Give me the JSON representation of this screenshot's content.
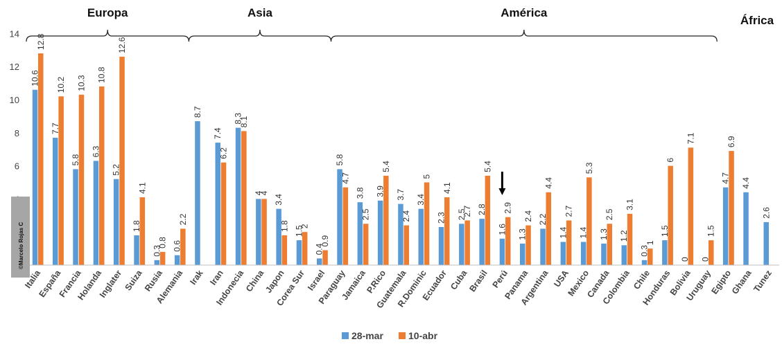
{
  "chart_data": {
    "type": "bar",
    "title": "",
    "xlabel": "",
    "ylabel": "",
    "ylim": [
      0,
      14
    ],
    "yticks": [
      4,
      6,
      8,
      10,
      12,
      14
    ],
    "grid": false,
    "legend_position": "bottom",
    "categories": [
      "Italia",
      "España",
      "Francia",
      "Holanda",
      "Inglater",
      "Suiza",
      "Rusia",
      "Alemania",
      "Irak",
      "Iran",
      "Indonecia",
      "China",
      "Japon",
      "Corea Sur",
      "Israel",
      "Paraguay",
      "Jamaica",
      "P.Rico",
      "Guatemala",
      "R.Dominic",
      "Ecuador",
      "Cuba",
      "Brasil",
      "Perú",
      "Panama",
      "Argentina",
      "USA",
      "Mexico",
      "Canada",
      "Colombia",
      "Chile",
      "Honduras",
      "Bolivia",
      "Uruguay",
      "Egipto",
      "Ghana",
      "Tunez"
    ],
    "series": [
      {
        "name": "28-mar",
        "color": "#5b9bd5",
        "values": [
          10.6,
          7.7,
          5.8,
          6.3,
          5.2,
          1.8,
          0.3,
          0.6,
          8.7,
          7.4,
          8.3,
          4,
          3.4,
          1.5,
          0.4,
          5.8,
          3.8,
          3.9,
          3.7,
          3.4,
          2.3,
          2.5,
          2.8,
          1.6,
          1.3,
          2.2,
          1.4,
          1.4,
          1.3,
          1.2,
          0.3,
          1.5,
          0,
          0,
          4.7,
          4.4,
          2.6
        ],
        "labels": [
          "10.6",
          "7.7",
          "5.8",
          "6.3",
          "5.2",
          "1.8",
          "0.3",
          "0.6",
          "8.7",
          "7.4",
          "8.3",
          "4",
          "3.4",
          "1.5",
          "0.4",
          "5.8",
          "3.8",
          "3.9",
          "3.7",
          "3.4",
          "2.3",
          "2.5",
          "2.8",
          "1.6",
          "1.3",
          "2.2",
          "1.4",
          "1.4",
          "1.3",
          "1.2",
          "0.3",
          "1.5",
          "0",
          "0",
          "4.7",
          "4.4",
          "2.6"
        ]
      },
      {
        "name": "10-abr",
        "color": "#ed7d31",
        "values": [
          12.8,
          10.2,
          10.3,
          10.8,
          12.6,
          4.1,
          0.8,
          2.2,
          null,
          6.2,
          8.1,
          4,
          1.8,
          2,
          0.9,
          4.7,
          2.5,
          5.4,
          2.4,
          5,
          4.1,
          2.7,
          5.4,
          2.9,
          2.4,
          4.4,
          2.7,
          5.3,
          2.5,
          3.1,
          1,
          6,
          7.1,
          1.5,
          6.9,
          null,
          null
        ],
        "labels": [
          "12.8",
          "10.2",
          "10.3",
          "10.8",
          "12.6",
          "4.1",
          "0.8",
          "2.2",
          "",
          "6.2",
          "8.1",
          "4",
          "1.8",
          "2",
          "0.9",
          "4.7",
          "2.5",
          "5.4",
          "2.4",
          "5",
          "4.1",
          "2.7",
          "5.4",
          "2.9",
          "2.4",
          "4.4",
          "2.7",
          "5.3",
          "2.5",
          "3.1",
          "1",
          "6",
          "7.1",
          "1.5",
          "6.9",
          "",
          ""
        ]
      }
    ],
    "regions": [
      {
        "name": "Europa",
        "from": 0,
        "to": 7
      },
      {
        "name": "Asia",
        "from": 8,
        "to": 14
      },
      {
        "name": "América",
        "from": 15,
        "to": 33
      },
      {
        "name": "África",
        "from": 34,
        "to": 36
      }
    ],
    "highlight": {
      "category": "Perú",
      "marker": "down-arrow-icon"
    },
    "watermark": "©Marcelo Rojas C"
  }
}
